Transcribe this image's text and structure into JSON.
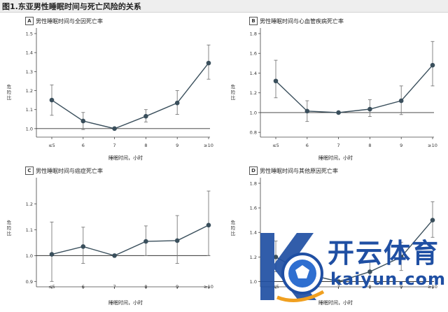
{
  "figure_title": "图1.东亚男性睡眠时间与死亡风险的关系",
  "y_axis_label": "危险比",
  "x_axis_label": "睡眠时间，小时",
  "watermark": {
    "brand": "开云体育",
    "domain": "kaiyun.com"
  },
  "colors": {
    "line": "#3a4f5c",
    "point": "#3a4f5c",
    "errorbar": "#7a7a7a",
    "reference": "#333333"
  },
  "chart_data": [
    {
      "type": "line",
      "panel": "A",
      "title": "男性睡眠时间与全因死亡率",
      "categories": [
        "≤5",
        "6",
        "7",
        "8",
        "9",
        "≥10"
      ],
      "values": [
        1.15,
        1.04,
        1.0,
        1.065,
        1.135,
        1.345
      ],
      "lower": [
        1.07,
        0.995,
        1.0,
        1.035,
        1.075,
        1.26
      ],
      "upper": [
        1.23,
        1.085,
        1.0,
        1.1,
        1.2,
        1.44
      ],
      "yticks": [
        "1.0",
        "1.1",
        "1.2",
        "1.3",
        "1.4",
        "1.5"
      ],
      "ylim": [
        0.97,
        1.5
      ],
      "reference_y": 1.0
    },
    {
      "type": "line",
      "panel": "B",
      "title": "男性睡眠时间与心血管疾病死亡率",
      "categories": [
        "≤5",
        "6",
        "7",
        "8",
        "9",
        "≥10"
      ],
      "values": [
        1.32,
        1.015,
        1.0,
        1.035,
        1.12,
        1.48
      ],
      "lower": [
        1.15,
        0.91,
        1.0,
        0.96,
        0.98,
        1.27
      ],
      "upper": [
        1.53,
        1.12,
        1.0,
        1.13,
        1.27,
        1.72
      ],
      "yticks": [
        "0.8",
        "1.0",
        "1.2",
        "1.4",
        "1.6",
        "1.8"
      ],
      "ylim": [
        0.78,
        1.8
      ],
      "reference_y": 1.0
    },
    {
      "type": "line",
      "panel": "C",
      "title": "男性睡眠时间与癌症死亡率",
      "categories": [
        "≤5",
        "6",
        "7",
        "8",
        "9",
        "≥10"
      ],
      "values": [
        1.005,
        1.035,
        1.0,
        1.055,
        1.058,
        1.118
      ],
      "lower": [
        0.9,
        0.97,
        1.0,
        1.0,
        0.97,
        1.0
      ],
      "upper": [
        1.13,
        1.11,
        1.0,
        1.115,
        1.155,
        1.25
      ],
      "yticks": [
        "0.9",
        "1.0",
        "1.1",
        "1.2"
      ],
      "ylim": [
        0.89,
        1.28
      ],
      "reference_y": 1.0
    },
    {
      "type": "line",
      "panel": "D",
      "title": "男性睡眠时间与其他原因死亡率",
      "categories": [
        "≤5",
        "6",
        "7",
        "8",
        "9",
        "≥10"
      ],
      "values": [
        1.2,
        1.06,
        1.0,
        1.08,
        1.2,
        1.5
      ],
      "lower": [
        1.08,
        0.98,
        1.0,
        1.0,
        1.09,
        1.36
      ],
      "upper": [
        1.33,
        1.14,
        1.0,
        1.16,
        1.32,
        1.65
      ],
      "yticks": [
        "1.0",
        "1.2",
        "1.4",
        "1.6",
        "1.8"
      ],
      "ylim": [
        0.98,
        1.8
      ],
      "reference_y": 1.0
    }
  ]
}
